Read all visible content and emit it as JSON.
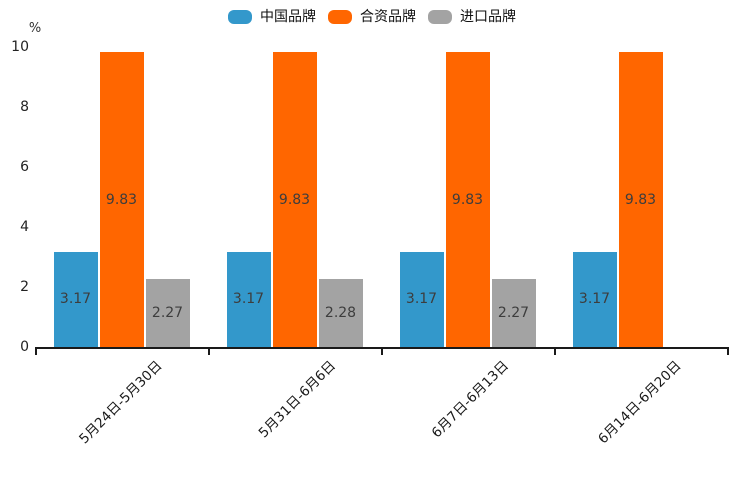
{
  "chart_data": {
    "type": "bar",
    "title": "",
    "unit_label": "%",
    "categories": [
      "5月24日-5月30日",
      "5月31日-6月6日",
      "6月7日-6月13日",
      "6月14日-6月20日"
    ],
    "series": [
      {
        "name": "中国品牌",
        "color": "#3398cb",
        "values": [
          3.17,
          3.17,
          3.17,
          3.17
        ]
      },
      {
        "name": "合资品牌",
        "color": "#ff6600",
        "values": [
          9.83,
          9.83,
          9.83,
          9.83
        ]
      },
      {
        "name": "进口品牌",
        "color": "#a3a3a3",
        "values": [
          2.27,
          2.28,
          2.27,
          null
        ]
      }
    ],
    "ylim": [
      0,
      10
    ],
    "ytick_step": 2,
    "yticks": [
      "0",
      "2",
      "4",
      "6",
      "8",
      "10"
    ],
    "grid": false,
    "legend_position": "top",
    "value_labels": "inside-center",
    "value_label_format": "0.00",
    "colors": {
      "axis": "#1a1a1a",
      "tick_text": "#222222",
      "value_text": "#3d3d3d",
      "background": "#ffffff"
    }
  }
}
